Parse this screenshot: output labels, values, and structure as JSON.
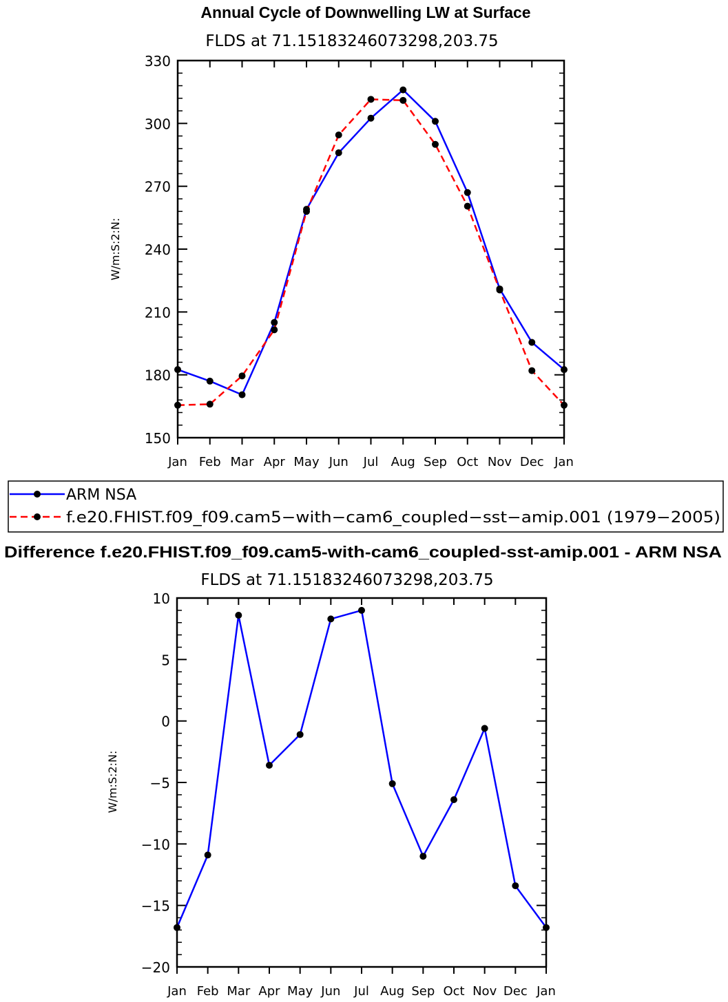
{
  "chart_data": [
    {
      "type": "line",
      "title": "Annual Cycle of Downwelling LW at Surface",
      "subtitle": "FLDS at 71.15183246073298,203.75",
      "ylabel": "W/m:S:2:N:",
      "ylim": [
        150,
        330
      ],
      "yticks": [
        150,
        180,
        210,
        240,
        270,
        300,
        330
      ],
      "categories": [
        "Jan",
        "Feb",
        "Mar",
        "Apr",
        "May",
        "Jun",
        "Jul",
        "Aug",
        "Sep",
        "Oct",
        "Nov",
        "Dec",
        "Jan"
      ],
      "series": [
        {
          "name": "ARM NSA",
          "color": "#0000ff",
          "dash": "solid",
          "values": [
            182.5,
            177,
            170.5,
            205,
            259,
            286,
            302.5,
            316,
            301,
            267,
            221,
            195.5,
            182.5
          ]
        },
        {
          "name": "f.e20.FHIST.f09_f09.cam5-with-cam6_coupled-sst-amip.001 (1979-2005)",
          "color": "#ff0000",
          "dash": "dashed",
          "values": [
            165.5,
            166,
            179.5,
            201.5,
            258,
            294.5,
            311.5,
            311,
            290,
            260.5,
            220.5,
            182,
            165.5
          ]
        }
      ]
    },
    {
      "type": "line",
      "title": "Difference f.e20.FHIST.f09_f09.cam5-with-cam6_coupled-sst-amip.001 - ARM NSA",
      "subtitle": "FLDS at 71.15183246073298,203.75",
      "ylabel": "W/m:S:2:N:",
      "ylim": [
        -20,
        10
      ],
      "yticks": [
        -20,
        -15,
        -10,
        -5,
        0,
        5,
        10
      ],
      "yticklabels": [
        "−20",
        "−15",
        "−10",
        "−5",
        "0",
        "5",
        "10"
      ],
      "categories": [
        "Jan",
        "Feb",
        "Mar",
        "Apr",
        "May",
        "Jun",
        "Jul",
        "Aug",
        "Sep",
        "Oct",
        "Nov",
        "Dec",
        "Jan"
      ],
      "series": [
        {
          "name": "Difference",
          "color": "#0000ff",
          "dash": "solid",
          "values": [
            -16.8,
            -10.9,
            8.6,
            -3.6,
            -1.1,
            8.3,
            9.0,
            -5.1,
            -11.0,
            -6.4,
            -0.6,
            -13.4,
            -16.8
          ]
        }
      ]
    }
  ],
  "legend": {
    "entries": [
      {
        "label": "ARM NSA",
        "color": "#0000ff",
        "dash": "solid"
      },
      {
        "label": "f.e20.FHIST.f09_f09.cam5−with−cam6_coupled−sst−amip.001 (1979−2005)",
        "color": "#ff0000",
        "dash": "dashed"
      }
    ]
  }
}
